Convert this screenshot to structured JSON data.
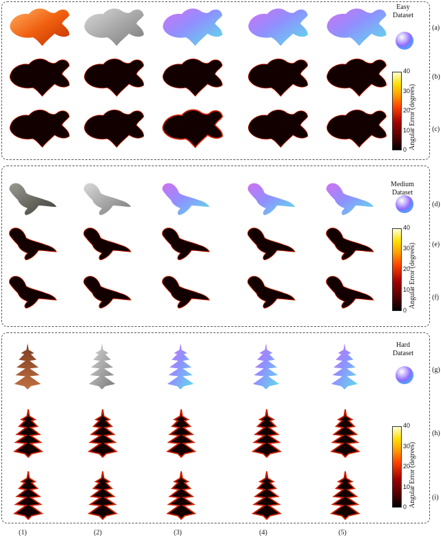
{
  "datasets": [
    {
      "title_line1": "Easy",
      "title_line2": "Dataset",
      "object": "goldfish",
      "row_labels": [
        "(a)",
        "(b)",
        "(c)"
      ]
    },
    {
      "title_line1": "Medium",
      "title_line2": "Dataset",
      "object": "sea-lion",
      "row_labels": [
        "(d)",
        "(e)",
        "(f)"
      ]
    },
    {
      "title_line1": "Hard",
      "title_line2": "Dataset",
      "object": "pagoda",
      "row_labels": [
        "(g)",
        "(h)",
        "(i)"
      ]
    }
  ],
  "column_labels": [
    "(1)",
    "(2)",
    "(3)",
    "(4)",
    "(5)"
  ],
  "colorbar": {
    "title": "Angular Error (degrees)",
    "ticks": [
      "40",
      "30",
      "20",
      "10",
      "0"
    ]
  },
  "colors": {
    "rgb_fish": "#f26a1b",
    "rgb_seal": "#6a6a64",
    "rgb_pagoda": "#8a4a2a",
    "depth": "#9a9a9a",
    "error_bg": "#120000",
    "error_edge": "#d02000",
    "normal_a": "#7f8cff",
    "normal_b": "#d15cf0",
    "normal_c": "#5ce0e0"
  }
}
